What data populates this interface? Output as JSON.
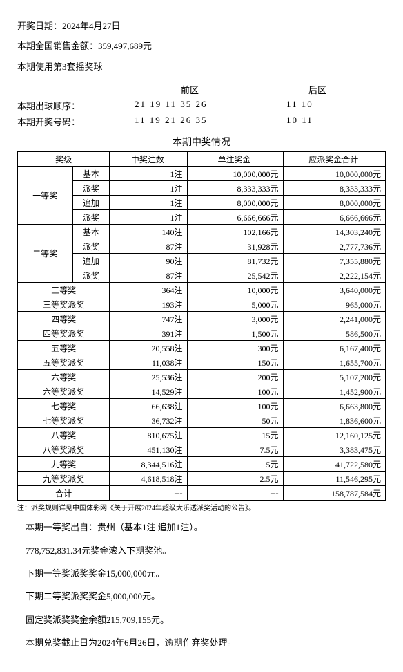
{
  "header": {
    "draw_date_label": "开奖日期：",
    "draw_date": "2024年4月27日",
    "sales_label": "本期全国销售金额：",
    "sales_amount": "359,497,689元",
    "ball_set_label": "本期使用第3套摇奖球",
    "front_zone": "前区",
    "back_zone": "后区",
    "order_label": "本期出球顺序：",
    "order_front": "21 19 11 35 26",
    "order_back": "11 10",
    "result_label": "本期开奖号码：",
    "result_front": "11 19 21 26 35",
    "result_back": "10 11",
    "section_title": "本期中奖情况"
  },
  "table": {
    "headers": {
      "level": "奖级",
      "count": "中奖注数",
      "unit": "单注奖金",
      "total": "应派奖金合计"
    },
    "first": {
      "name": "一等奖",
      "subs": [
        {
          "sub": "基本",
          "count": "1注",
          "unit": "10,000,000元",
          "total": "10,000,000元"
        },
        {
          "sub": "派奖",
          "count": "1注",
          "unit": "8,333,333元",
          "total": "8,333,333元"
        },
        {
          "sub": "追加",
          "count": "1注",
          "unit": "8,000,000元",
          "total": "8,000,000元"
        },
        {
          "sub": "派奖",
          "count": "1注",
          "unit": "6,666,666元",
          "total": "6,666,666元"
        }
      ]
    },
    "second": {
      "name": "二等奖",
      "subs": [
        {
          "sub": "基本",
          "count": "140注",
          "unit": "102,166元",
          "total": "14,303,240元"
        },
        {
          "sub": "派奖",
          "count": "87注",
          "unit": "31,928元",
          "total": "2,777,736元"
        },
        {
          "sub": "追加",
          "count": "90注",
          "unit": "81,732元",
          "total": "7,355,880元"
        },
        {
          "sub": "派奖",
          "count": "87注",
          "unit": "25,542元",
          "total": "2,222,154元"
        }
      ]
    },
    "rows": [
      {
        "name": "三等奖",
        "count": "364注",
        "unit": "10,000元",
        "total": "3,640,000元"
      },
      {
        "name": "三等奖派奖",
        "count": "193注",
        "unit": "5,000元",
        "total": "965,000元"
      },
      {
        "name": "四等奖",
        "count": "747注",
        "unit": "3,000元",
        "total": "2,241,000元"
      },
      {
        "name": "四等奖派奖",
        "count": "391注",
        "unit": "1,500元",
        "total": "586,500元"
      },
      {
        "name": "五等奖",
        "count": "20,558注",
        "unit": "300元",
        "total": "6,167,400元"
      },
      {
        "name": "五等奖派奖",
        "count": "11,038注",
        "unit": "150元",
        "total": "1,655,700元"
      },
      {
        "name": "六等奖",
        "count": "25,536注",
        "unit": "200元",
        "total": "5,107,200元"
      },
      {
        "name": "六等奖派奖",
        "count": "14,529注",
        "unit": "100元",
        "total": "1,452,900元"
      },
      {
        "name": "七等奖",
        "count": "66,638注",
        "unit": "100元",
        "total": "6,663,800元"
      },
      {
        "name": "七等奖派奖",
        "count": "36,732注",
        "unit": "50元",
        "total": "1,836,600元"
      },
      {
        "name": "八等奖",
        "count": "810,675注",
        "unit": "15元",
        "total": "12,160,125元"
      },
      {
        "name": "八等奖派奖",
        "count": "451,130注",
        "unit": "7.5元",
        "total": "3,383,475元"
      },
      {
        "name": "九等奖",
        "count": "8,344,516注",
        "unit": "5元",
        "total": "41,722,580元"
      },
      {
        "name": "九等奖派奖",
        "count": "4,618,518注",
        "unit": "2.5元",
        "total": "11,546,295元"
      }
    ],
    "sum": {
      "name": "合计",
      "count": "---",
      "unit": "---",
      "total": "158,787,584元"
    }
  },
  "note": "注：派奖规则详见中国体彩网《关于开展2024年超级大乐透派奖活动的公告》。",
  "footer": {
    "l1": "本期一等奖出自：贵州（基本1注 追加1注）。",
    "l2": "778,752,831.34元奖金滚入下期奖池。",
    "l3": "下期一等奖派奖奖金15,000,000元。",
    "l4": "下期二等奖派奖奖金5,000,000元。",
    "l5": "固定奖派奖奖金余额215,709,155元。",
    "l6": "本期兑奖截止日为2024年6月26日，逾期作弃奖处理。"
  }
}
